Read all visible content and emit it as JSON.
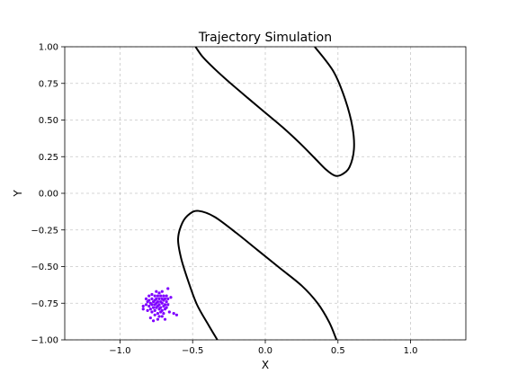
{
  "chart_data": {
    "type": "line",
    "title": "Trajectory Simulation",
    "xlabel": "X",
    "ylabel": "Y",
    "xlim": [
      -1.38,
      1.38
    ],
    "ylim": [
      -1.0,
      1.0
    ],
    "grid": true,
    "xticks": [
      -1.0,
      -0.5,
      0.0,
      0.5,
      1.0
    ],
    "xtick_labels": [
      "−1.0",
      "−0.5",
      "0.0",
      "0.5",
      "1.0"
    ],
    "yticks": [
      -1.0,
      -0.75,
      -0.5,
      -0.25,
      0.0,
      0.25,
      0.5,
      0.75,
      1.0
    ],
    "ytick_labels": [
      "−1.00",
      "−0.75",
      "−0.50",
      "−0.25",
      "0.00",
      "0.25",
      "0.50",
      "0.75",
      "1.00"
    ],
    "series": [
      {
        "type": "line",
        "color": "#000000",
        "points": [
          [
            -0.48,
            1.0
          ],
          [
            -0.43,
            0.93
          ],
          [
            -0.35,
            0.85
          ],
          [
            -0.25,
            0.76
          ],
          [
            -0.12,
            0.65
          ],
          [
            0.0,
            0.55
          ],
          [
            0.12,
            0.45
          ],
          [
            0.24,
            0.34
          ],
          [
            0.34,
            0.24
          ],
          [
            0.42,
            0.16
          ],
          [
            0.48,
            0.12
          ],
          [
            0.53,
            0.13
          ],
          [
            0.58,
            0.18
          ],
          [
            0.61,
            0.3
          ],
          [
            0.6,
            0.45
          ],
          [
            0.55,
            0.64
          ],
          [
            0.47,
            0.83
          ],
          [
            0.34,
            1.0
          ]
        ]
      },
      {
        "type": "line",
        "color": "#000000",
        "points": [
          [
            -0.33,
            -1.0
          ],
          [
            -0.39,
            -0.9
          ],
          [
            -0.47,
            -0.76
          ],
          [
            -0.53,
            -0.6
          ],
          [
            -0.58,
            -0.44
          ],
          [
            -0.6,
            -0.31
          ],
          [
            -0.57,
            -0.2
          ],
          [
            -0.52,
            -0.14
          ],
          [
            -0.46,
            -0.12
          ],
          [
            -0.35,
            -0.16
          ],
          [
            -0.2,
            -0.27
          ],
          [
            -0.05,
            -0.39
          ],
          [
            0.1,
            -0.51
          ],
          [
            0.25,
            -0.63
          ],
          [
            0.36,
            -0.75
          ],
          [
            0.44,
            -0.88
          ],
          [
            0.49,
            -1.0
          ]
        ]
      },
      {
        "type": "scatter",
        "color": "#7f00ff",
        "points": [
          [
            -0.84,
            -0.77
          ],
          [
            -0.84,
            -0.79
          ],
          [
            -0.82,
            -0.72
          ],
          [
            -0.82,
            -0.76
          ],
          [
            -0.81,
            -0.74
          ],
          [
            -0.81,
            -0.8
          ],
          [
            -0.8,
            -0.7
          ],
          [
            -0.8,
            -0.73
          ],
          [
            -0.8,
            -0.77
          ],
          [
            -0.79,
            -0.75
          ],
          [
            -0.79,
            -0.79
          ],
          [
            -0.79,
            -0.85
          ],
          [
            -0.78,
            -0.69
          ],
          [
            -0.78,
            -0.72
          ],
          [
            -0.78,
            -0.76
          ],
          [
            -0.78,
            -0.81
          ],
          [
            -0.77,
            -0.74
          ],
          [
            -0.77,
            -0.78
          ],
          [
            -0.77,
            -0.87
          ],
          [
            -0.76,
            -0.7
          ],
          [
            -0.76,
            -0.73
          ],
          [
            -0.76,
            -0.76
          ],
          [
            -0.76,
            -0.8
          ],
          [
            -0.76,
            -0.83
          ],
          [
            -0.75,
            -0.67
          ],
          [
            -0.75,
            -0.72
          ],
          [
            -0.75,
            -0.75
          ],
          [
            -0.75,
            -0.78
          ],
          [
            -0.74,
            -0.7
          ],
          [
            -0.74,
            -0.74
          ],
          [
            -0.74,
            -0.77
          ],
          [
            -0.74,
            -0.82
          ],
          [
            -0.74,
            -0.86
          ],
          [
            -0.73,
            -0.68
          ],
          [
            -0.73,
            -0.72
          ],
          [
            -0.73,
            -0.76
          ],
          [
            -0.73,
            -0.79
          ],
          [
            -0.73,
            -0.84
          ],
          [
            -0.72,
            -0.7
          ],
          [
            -0.72,
            -0.74
          ],
          [
            -0.72,
            -0.78
          ],
          [
            -0.72,
            -0.81
          ],
          [
            -0.71,
            -0.67
          ],
          [
            -0.71,
            -0.72
          ],
          [
            -0.71,
            -0.75
          ],
          [
            -0.71,
            -0.8
          ],
          [
            -0.71,
            -0.84
          ],
          [
            -0.7,
            -0.7
          ],
          [
            -0.7,
            -0.73
          ],
          [
            -0.7,
            -0.77
          ],
          [
            -0.7,
            -0.82
          ],
          [
            -0.69,
            -0.72
          ],
          [
            -0.69,
            -0.76
          ],
          [
            -0.69,
            -0.79
          ],
          [
            -0.69,
            -0.86
          ],
          [
            -0.68,
            -0.7
          ],
          [
            -0.68,
            -0.74
          ],
          [
            -0.68,
            -0.78
          ],
          [
            -0.67,
            -0.72
          ],
          [
            -0.67,
            -0.76
          ],
          [
            -0.67,
            -0.65
          ],
          [
            -0.66,
            -0.81
          ],
          [
            -0.65,
            -0.71
          ],
          [
            -0.63,
            -0.82
          ],
          [
            -0.61,
            -0.83
          ]
        ]
      }
    ]
  }
}
